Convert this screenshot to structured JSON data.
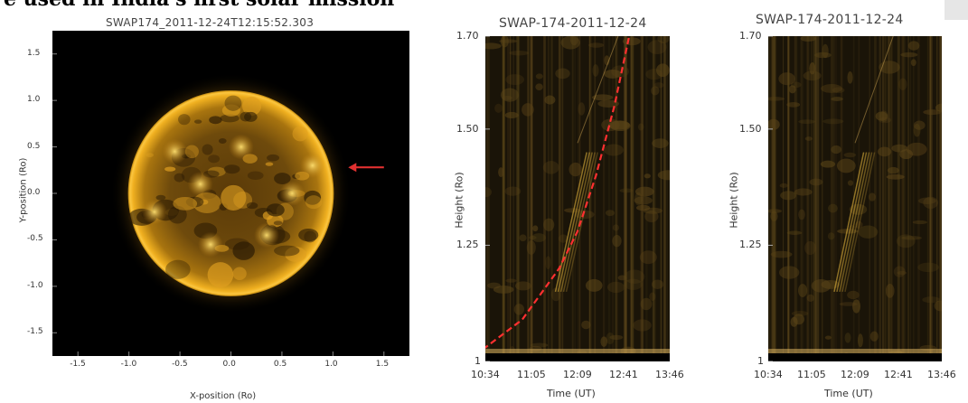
{
  "headline": "e used in India's first solar mission",
  "solar_image": {
    "title": "SWAP174_2011-12-24T12:15:52.303",
    "xlabel": "X-position (Ro)",
    "ylabel": "Y-position (Ro)",
    "x_ticks": [
      "-1.5",
      "-1.0",
      "-0.5",
      "0.0",
      "0.5",
      "1.0",
      "1.5"
    ],
    "y_ticks": [
      "1.5",
      "1.0",
      "0.5",
      "0.0",
      "-0.5",
      "-1.0",
      "-1.5"
    ],
    "xlim": [
      -1.75,
      1.75
    ],
    "ylim": [
      -1.75,
      1.75
    ],
    "arrow_color": "#e03030",
    "sun_color": "#f0b020"
  },
  "chart_data": [
    {
      "type": "heatmap",
      "title": "SWAP-174-2011-12-24",
      "xlabel": "Time (UT)",
      "ylabel": "Height (Ro)",
      "x_ticks": [
        "10:34",
        "11:05",
        "12:09",
        "12:41",
        "13:46"
      ],
      "y_ticks": [
        "1.70",
        "1.50",
        "1.25",
        "1"
      ],
      "ylim": [
        1.0,
        1.7
      ],
      "fit_curve": {
        "color": "#ff3030",
        "style": "dashed",
        "points": [
          [
            -0.1,
            1.0
          ],
          [
            0.2,
            1.09
          ],
          [
            0.4,
            1.2
          ],
          [
            0.5,
            1.28
          ],
          [
            0.6,
            1.4
          ],
          [
            0.7,
            1.55
          ],
          [
            0.78,
            1.7
          ]
        ]
      }
    },
    {
      "type": "heatmap",
      "title": "SWAP-174-2011-12-24",
      "xlabel": "Time (UT)",
      "ylabel": "Height (Ro)",
      "x_ticks": [
        "10:34",
        "11:05",
        "12:09",
        "12:41",
        "13:46"
      ],
      "y_ticks": [
        "1.70",
        "1.50",
        "1.25",
        "1"
      ],
      "ylim": [
        1.0,
        1.7
      ]
    }
  ]
}
